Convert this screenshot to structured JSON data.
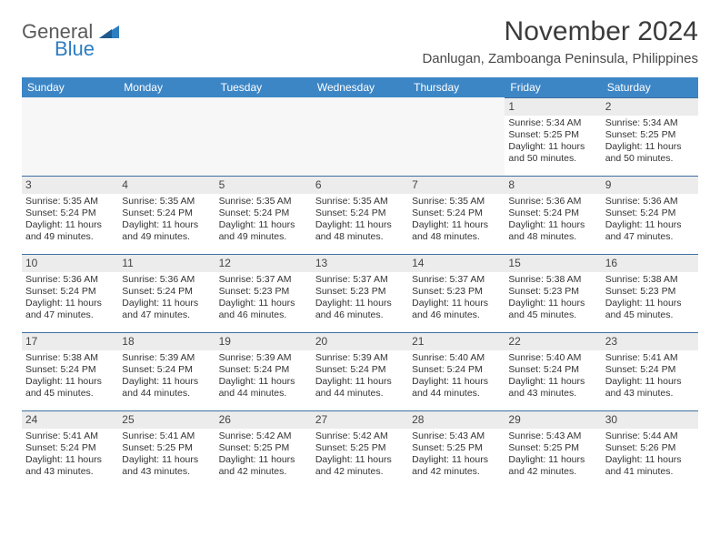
{
  "logo": {
    "part1": "General",
    "part2": "Blue"
  },
  "title": "November 2024",
  "location": "Danlugan, Zamboanga Peninsula, Philippines",
  "colors": {
    "header_bg": "#3d86c6",
    "header_text": "#ffffff",
    "daynum_bg": "#ececec",
    "daynum_border": "#3d6fa0",
    "text": "#333333",
    "logo_gray": "#5a5a5a",
    "logo_blue": "#2d7dc0"
  },
  "day_headers": [
    "Sunday",
    "Monday",
    "Tuesday",
    "Wednesday",
    "Thursday",
    "Friday",
    "Saturday"
  ],
  "weeks": [
    [
      {
        "n": "",
        "sr": "",
        "ss": "",
        "dl": ""
      },
      {
        "n": "",
        "sr": "",
        "ss": "",
        "dl": ""
      },
      {
        "n": "",
        "sr": "",
        "ss": "",
        "dl": ""
      },
      {
        "n": "",
        "sr": "",
        "ss": "",
        "dl": ""
      },
      {
        "n": "",
        "sr": "",
        "ss": "",
        "dl": ""
      },
      {
        "n": "1",
        "sr": "Sunrise: 5:34 AM",
        "ss": "Sunset: 5:25 PM",
        "dl": "Daylight: 11 hours and 50 minutes."
      },
      {
        "n": "2",
        "sr": "Sunrise: 5:34 AM",
        "ss": "Sunset: 5:25 PM",
        "dl": "Daylight: 11 hours and 50 minutes."
      }
    ],
    [
      {
        "n": "3",
        "sr": "Sunrise: 5:35 AM",
        "ss": "Sunset: 5:24 PM",
        "dl": "Daylight: 11 hours and 49 minutes."
      },
      {
        "n": "4",
        "sr": "Sunrise: 5:35 AM",
        "ss": "Sunset: 5:24 PM",
        "dl": "Daylight: 11 hours and 49 minutes."
      },
      {
        "n": "5",
        "sr": "Sunrise: 5:35 AM",
        "ss": "Sunset: 5:24 PM",
        "dl": "Daylight: 11 hours and 49 minutes."
      },
      {
        "n": "6",
        "sr": "Sunrise: 5:35 AM",
        "ss": "Sunset: 5:24 PM",
        "dl": "Daylight: 11 hours and 48 minutes."
      },
      {
        "n": "7",
        "sr": "Sunrise: 5:35 AM",
        "ss": "Sunset: 5:24 PM",
        "dl": "Daylight: 11 hours and 48 minutes."
      },
      {
        "n": "8",
        "sr": "Sunrise: 5:36 AM",
        "ss": "Sunset: 5:24 PM",
        "dl": "Daylight: 11 hours and 48 minutes."
      },
      {
        "n": "9",
        "sr": "Sunrise: 5:36 AM",
        "ss": "Sunset: 5:24 PM",
        "dl": "Daylight: 11 hours and 47 minutes."
      }
    ],
    [
      {
        "n": "10",
        "sr": "Sunrise: 5:36 AM",
        "ss": "Sunset: 5:24 PM",
        "dl": "Daylight: 11 hours and 47 minutes."
      },
      {
        "n": "11",
        "sr": "Sunrise: 5:36 AM",
        "ss": "Sunset: 5:24 PM",
        "dl": "Daylight: 11 hours and 47 minutes."
      },
      {
        "n": "12",
        "sr": "Sunrise: 5:37 AM",
        "ss": "Sunset: 5:23 PM",
        "dl": "Daylight: 11 hours and 46 minutes."
      },
      {
        "n": "13",
        "sr": "Sunrise: 5:37 AM",
        "ss": "Sunset: 5:23 PM",
        "dl": "Daylight: 11 hours and 46 minutes."
      },
      {
        "n": "14",
        "sr": "Sunrise: 5:37 AM",
        "ss": "Sunset: 5:23 PM",
        "dl": "Daylight: 11 hours and 46 minutes."
      },
      {
        "n": "15",
        "sr": "Sunrise: 5:38 AM",
        "ss": "Sunset: 5:23 PM",
        "dl": "Daylight: 11 hours and 45 minutes."
      },
      {
        "n": "16",
        "sr": "Sunrise: 5:38 AM",
        "ss": "Sunset: 5:23 PM",
        "dl": "Daylight: 11 hours and 45 minutes."
      }
    ],
    [
      {
        "n": "17",
        "sr": "Sunrise: 5:38 AM",
        "ss": "Sunset: 5:24 PM",
        "dl": "Daylight: 11 hours and 45 minutes."
      },
      {
        "n": "18",
        "sr": "Sunrise: 5:39 AM",
        "ss": "Sunset: 5:24 PM",
        "dl": "Daylight: 11 hours and 44 minutes."
      },
      {
        "n": "19",
        "sr": "Sunrise: 5:39 AM",
        "ss": "Sunset: 5:24 PM",
        "dl": "Daylight: 11 hours and 44 minutes."
      },
      {
        "n": "20",
        "sr": "Sunrise: 5:39 AM",
        "ss": "Sunset: 5:24 PM",
        "dl": "Daylight: 11 hours and 44 minutes."
      },
      {
        "n": "21",
        "sr": "Sunrise: 5:40 AM",
        "ss": "Sunset: 5:24 PM",
        "dl": "Daylight: 11 hours and 44 minutes."
      },
      {
        "n": "22",
        "sr": "Sunrise: 5:40 AM",
        "ss": "Sunset: 5:24 PM",
        "dl": "Daylight: 11 hours and 43 minutes."
      },
      {
        "n": "23",
        "sr": "Sunrise: 5:41 AM",
        "ss": "Sunset: 5:24 PM",
        "dl": "Daylight: 11 hours and 43 minutes."
      }
    ],
    [
      {
        "n": "24",
        "sr": "Sunrise: 5:41 AM",
        "ss": "Sunset: 5:24 PM",
        "dl": "Daylight: 11 hours and 43 minutes."
      },
      {
        "n": "25",
        "sr": "Sunrise: 5:41 AM",
        "ss": "Sunset: 5:25 PM",
        "dl": "Daylight: 11 hours and 43 minutes."
      },
      {
        "n": "26",
        "sr": "Sunrise: 5:42 AM",
        "ss": "Sunset: 5:25 PM",
        "dl": "Daylight: 11 hours and 42 minutes."
      },
      {
        "n": "27",
        "sr": "Sunrise: 5:42 AM",
        "ss": "Sunset: 5:25 PM",
        "dl": "Daylight: 11 hours and 42 minutes."
      },
      {
        "n": "28",
        "sr": "Sunrise: 5:43 AM",
        "ss": "Sunset: 5:25 PM",
        "dl": "Daylight: 11 hours and 42 minutes."
      },
      {
        "n": "29",
        "sr": "Sunrise: 5:43 AM",
        "ss": "Sunset: 5:25 PM",
        "dl": "Daylight: 11 hours and 42 minutes."
      },
      {
        "n": "30",
        "sr": "Sunrise: 5:44 AM",
        "ss": "Sunset: 5:26 PM",
        "dl": "Daylight: 11 hours and 41 minutes."
      }
    ]
  ]
}
